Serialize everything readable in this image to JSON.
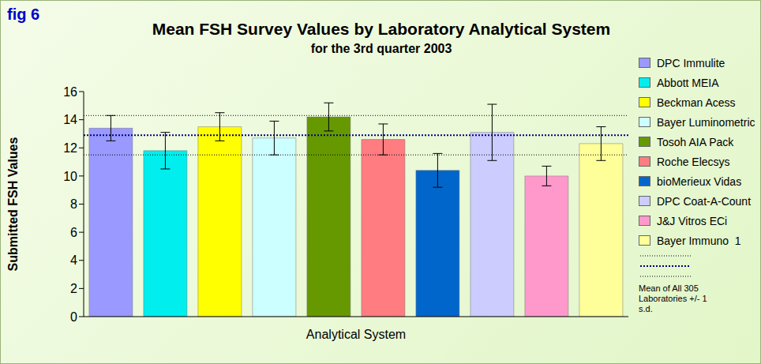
{
  "chart_data": {
    "type": "bar",
    "fig_label": "fig 6",
    "title": "Mean FSH Survey Values by Laboratory Analytical System",
    "subtitle": "for the 3rd quarter 2003",
    "x_label": "Analytical System",
    "y_label": "Submitted FSH Values",
    "categories": [
      "DPC Immulite",
      "Abbott MEIA",
      "Beckman Acess",
      "Bayer Luminometric",
      "Tosoh AIA Pack",
      "Roche Elecsys",
      "bioMerieux Vidas",
      "DPC Coat-A-Count",
      "J&J Vitros ECi",
      "Bayer Immuno  1"
    ],
    "values": [
      13.4,
      11.8,
      13.5,
      12.7,
      14.2,
      12.6,
      10.4,
      13.1,
      10.0,
      12.3
    ],
    "errors": [
      0.9,
      1.3,
      1.0,
      1.2,
      1.0,
      1.1,
      1.2,
      2.0,
      0.7,
      1.2
    ],
    "colors": [
      "#9999ff",
      "#00eeee",
      "#ffff00",
      "#ccffff",
      "#669900",
      "#ff7c80",
      "#0066cc",
      "#ccccff",
      "#ff99cc",
      "#ffff99"
    ],
    "ylim": [
      0,
      16
    ],
    "yticks": [
      0,
      2,
      4,
      6,
      8,
      10,
      12,
      14,
      16
    ],
    "grid": false,
    "legend": "right",
    "tick_labels": "y",
    "mean_line": 12.9,
    "sd_lines": [
      11.5,
      14.3
    ],
    "reference_label": "Mean of All 305 Laboratories +/- 1 s.d."
  }
}
